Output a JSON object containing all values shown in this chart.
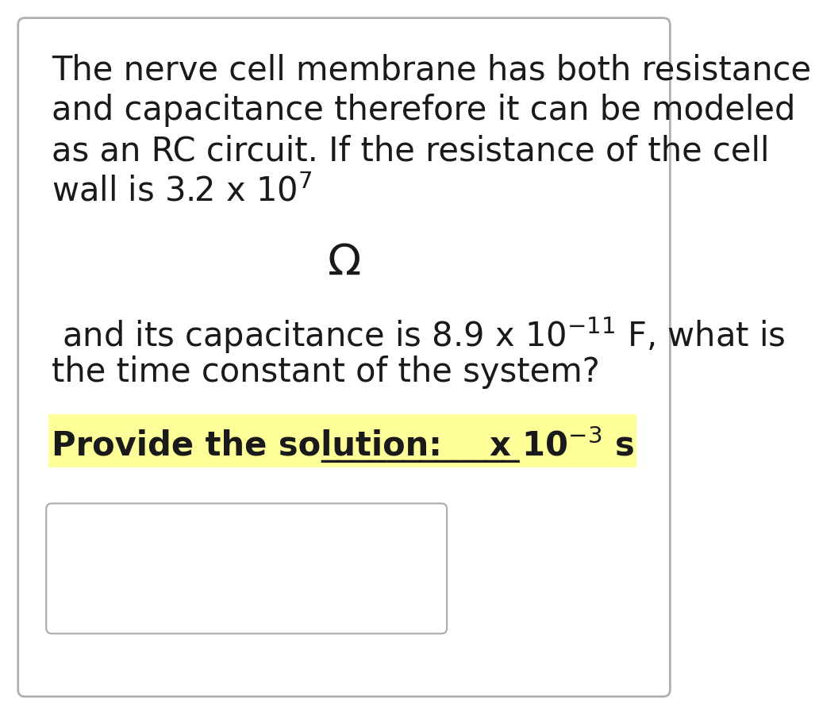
{
  "bg_color": "#ffffff",
  "text_color": "#1a1a1a",
  "highlight_color": "#ffff99",
  "line1": "The nerve cell membrane has both resistance",
  "line2": "and capacitance therefore it can be modeled",
  "line3": "as an RC circuit. If the resistance of the cell",
  "line4_math": "wall is 3.2 x 10$^{7}$",
  "omega": "$\\Omega$",
  "line5_math": " and its capacitance is 8.9 x 10$^{-11}$ F, what is",
  "line6": "the time constant of the system?",
  "bold_label": "Provide the solution:",
  "answer_blank": "____________",
  "answer_math": "x 10$^{-3}$ s",
  "main_font_size": 30,
  "omega_font_size": 40,
  "bold_font_size": 30
}
